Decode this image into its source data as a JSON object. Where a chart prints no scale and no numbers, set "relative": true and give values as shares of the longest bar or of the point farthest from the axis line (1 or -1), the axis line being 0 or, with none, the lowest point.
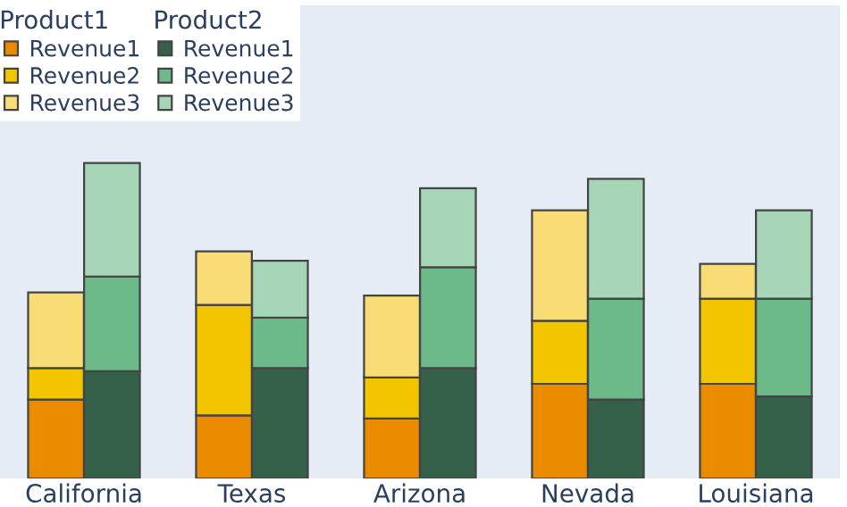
{
  "chart_data": {
    "type": "bar",
    "stacked": true,
    "relative": true,
    "categories": [
      null,
      "California",
      null,
      null,
      "Texas",
      null,
      null,
      "Arizona",
      null,
      null,
      "Nevada",
      null,
      null,
      "Louisiana",
      null
    ],
    "legend_title": [
      "Product1",
      "Product2"
    ],
    "legend": "top left",
    "grid": false,
    "tick_labels": "x",
    "series": [
      {
        "name": "Revenue1",
        "color": "#eb8c00",
        "values": [
          0.25,
          null,
          null,
          0.2,
          null,
          null,
          0.19,
          null,
          null,
          0.3,
          null,
          null,
          0.3,
          null,
          null
        ]
      },
      {
        "name": "Revenue2",
        "color": "#f2c500",
        "values": [
          0.1,
          null,
          null,
          0.35,
          null,
          null,
          0.13,
          null,
          null,
          0.2,
          null,
          null,
          0.27,
          null,
          null
        ]
      },
      {
        "name": "Revenue3",
        "color": "#f8dc75",
        "values": [
          0.24,
          null,
          null,
          0.17,
          null,
          null,
          0.26,
          null,
          null,
          0.35,
          null,
          null,
          0.11,
          null,
          null
        ]
      },
      {
        "name": "Revenue1",
        "color": "#35614a",
        "values": [
          null,
          null,
          0.34,
          null,
          null,
          0.35,
          null,
          null,
          0.35,
          null,
          null,
          0.25,
          null,
          null,
          0.26
        ]
      },
      {
        "name": "Revenue2",
        "color": "#6cb98a",
        "values": [
          null,
          null,
          0.3,
          null,
          null,
          0.16,
          null,
          null,
          0.32,
          null,
          null,
          0.32,
          null,
          null,
          0.31
        ]
      },
      {
        "name": "Revenue3",
        "color": "#a6d6b7",
        "values": [
          null,
          null,
          0.36,
          null,
          null,
          0.18,
          null,
          null,
          0.25,
          null,
          null,
          0.38,
          null,
          null,
          0.28
        ]
      }
    ]
  }
}
